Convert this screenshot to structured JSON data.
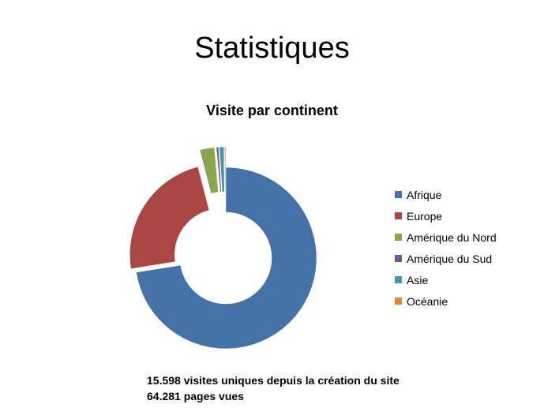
{
  "slide": {
    "title": "Statistiques"
  },
  "chart_data": {
    "type": "pie",
    "variant": "doughnut-exploded",
    "title": "Visite par continent",
    "categories": [
      "Afrique",
      "Europe",
      "Amérique du Nord",
      "Amérique du Sud",
      "Asie",
      "Océanie"
    ],
    "values": [
      72.5,
      23.5,
      2.6,
      0.4,
      0.8,
      0.2
    ],
    "unit": "%",
    "colors": [
      "#4572A7",
      "#AA4643",
      "#89A54E",
      "#71588F",
      "#4198AF",
      "#DB843D"
    ],
    "legend": "right"
  },
  "footer": {
    "line1": "15.598 visites uniques depuis la création du site",
    "line2": "64.281 pages vues"
  }
}
